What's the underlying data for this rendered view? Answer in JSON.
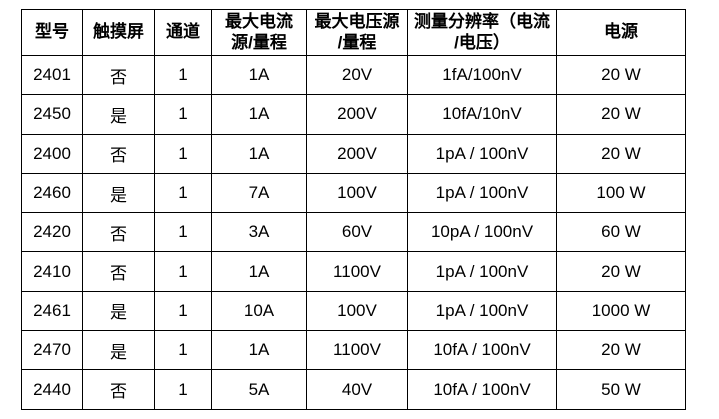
{
  "chart_data": {
    "type": "table",
    "columns": [
      "型号",
      "触摸屏",
      "通道",
      "最大电流\n源/量程",
      "最大电压源\n/量程",
      "测量分辨率（电流\n/电压）",
      "电源"
    ],
    "rows": [
      [
        "2401",
        "否",
        "1",
        "1A",
        "20V",
        "1fA/100nV",
        "20 W"
      ],
      [
        "2450",
        "是",
        "1",
        "1A",
        "200V",
        "10fA/10nV",
        "20 W"
      ],
      [
        "2400",
        "否",
        "1",
        "1A",
        "200V",
        "1pA / 100nV",
        "20 W"
      ],
      [
        "2460",
        "是",
        "1",
        "7A",
        "100V",
        "1pA / 100nV",
        "100 W"
      ],
      [
        "2420",
        "否",
        "1",
        "3A",
        "60V",
        "10pA / 100nV",
        "60 W"
      ],
      [
        "2410",
        "否",
        "1",
        "1A",
        "1100V",
        "1pA / 100nV",
        "20 W"
      ],
      [
        "2461",
        "是",
        "1",
        "10A",
        "100V",
        "1pA / 100nV",
        "1000 W"
      ],
      [
        "2470",
        "是",
        "1",
        "1A",
        "1100V",
        "10fA / 100nV",
        "20 W"
      ],
      [
        "2440",
        "否",
        "1",
        "5A",
        "40V",
        "10fA / 100nV",
        "50 W"
      ]
    ],
    "layout": {
      "grid": true,
      "header_bold": true,
      "text_align": "center",
      "legend_position": "none"
    },
    "colors": {
      "border": "#000000",
      "text": "#000000",
      "background": "#ffffff"
    }
  }
}
